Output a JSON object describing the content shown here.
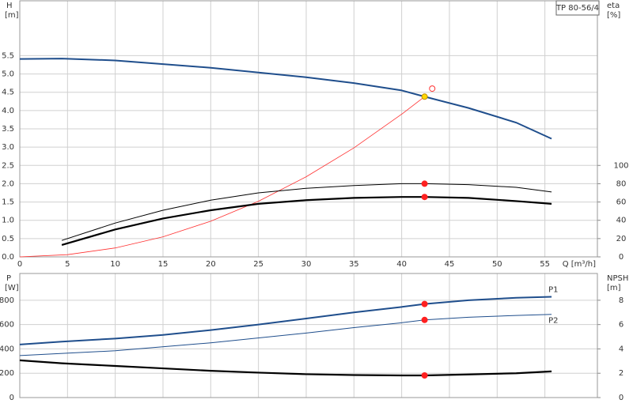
{
  "chart_data": [
    {
      "type": "line",
      "title": "TP 80-56/4",
      "ylabel": "H",
      "yunit": "[m]",
      "y2label": "eta",
      "y2unit": "[%]",
      "xlabel": "Q [m³/h]",
      "xlim": [
        0,
        60.5
      ],
      "xticks": [
        0,
        5,
        10,
        15,
        20,
        25,
        30,
        35,
        40,
        45,
        50,
        55
      ],
      "xtick_labels": true,
      "ylim": [
        0,
        7.0
      ],
      "yticks": [
        {
          "value": 0,
          "label": "0.0"
        },
        0.5,
        {
          "value": 1,
          "label": "1.0"
        },
        1.5,
        {
          "value": 2,
          "label": "2.0"
        },
        2.5,
        {
          "value": 3,
          "label": "3.0"
        },
        3.5,
        {
          "value": 4,
          "label": "4.0"
        },
        4.5,
        {
          "value": 5,
          "label": "5.0"
        },
        5.5
      ],
      "y2lim": [
        0,
        280
      ],
      "y2ticks": [
        0,
        20,
        40,
        60,
        80,
        100
      ],
      "grid": true,
      "series": [
        {
          "color": "#1f4e8c",
          "width": 2,
          "x": [
            0,
            4.4,
            10,
            20,
            30,
            35,
            40,
            42.4,
            47,
            52,
            55.7
          ],
          "values": [
            5.41,
            5.42,
            5.37,
            5.17,
            4.91,
            4.75,
            4.55,
            4.38,
            4.07,
            3.67,
            3.23
          ]
        },
        {
          "color": "#ff3030",
          "width": 0.8,
          "x": [
            0,
            5,
            10,
            15,
            20,
            25,
            30,
            35,
            40,
            42.4
          ],
          "values": [
            0,
            0.061,
            0.244,
            0.548,
            0.975,
            1.52,
            2.19,
            2.98,
            3.9,
            4.38
          ]
        },
        {
          "color": "#000000",
          "width": 1,
          "axis": "y2",
          "x": [
            4.4,
            10,
            15,
            20,
            25,
            30,
            35,
            40,
            42.4,
            47,
            52,
            55.7
          ],
          "values": [
            18,
            37,
            51,
            62,
            70,
            75,
            78,
            80,
            80,
            79,
            76,
            71
          ]
        },
        {
          "color": "#000000",
          "width": 2.2,
          "axis": "y2",
          "x": [
            4.4,
            10,
            15,
            20,
            25,
            30,
            35,
            40,
            42.4,
            47,
            52,
            55.7
          ],
          "values": [
            13,
            30,
            42,
            51,
            58,
            62,
            64.5,
            65.5,
            65.5,
            64.5,
            61,
            58
          ]
        }
      ],
      "points": [
        {
          "x": 42.4,
          "y": 4.38,
          "color": "#ffd700",
          "filled": true
        },
        {
          "x": 43.2,
          "y": 4.6,
          "color": "#ff3030",
          "filled": false
        },
        {
          "x": 42.4,
          "y": 80,
          "color": "#ff2020",
          "filled": true,
          "axis": "y2"
        },
        {
          "x": 42.4,
          "y": 65.5,
          "color": "#ff2020",
          "filled": true,
          "axis": "y2"
        }
      ]
    },
    {
      "type": "line",
      "ylabel": "P",
      "yunit": "[W]",
      "y2label": "NPSH",
      "y2unit": "[m]",
      "xlim": [
        0,
        60.5
      ],
      "xticks": [
        0,
        5,
        10,
        15,
        20,
        25,
        30,
        35,
        40,
        45,
        50,
        55
      ],
      "xtick_labels": false,
      "ylim": [
        0,
        1020
      ],
      "yticks": [
        0,
        200,
        400,
        600,
        800
      ],
      "y2lim": [
        0,
        10.2
      ],
      "y2ticks": [
        0,
        2,
        4,
        6,
        8
      ],
      "grid": true,
      "series": [
        {
          "name": "P1",
          "color": "#1f4e8c",
          "width": 2,
          "x": [
            0,
            4.4,
            10,
            15,
            20,
            25,
            30,
            35,
            40,
            42.4,
            47,
            52,
            55.7
          ],
          "values": [
            436,
            460,
            485,
            515,
            555,
            600,
            650,
            700,
            745,
            769,
            800,
            820,
            828
          ]
        },
        {
          "name": "P2",
          "color": "#1f4e8c",
          "width": 1,
          "x": [
            0,
            10,
            20,
            30,
            35,
            40,
            42.4,
            47,
            52,
            55.7
          ],
          "values": [
            345,
            385,
            450,
            530,
            575,
            615,
            638,
            660,
            675,
            684
          ]
        },
        {
          "color": "#000000",
          "width": 2.2,
          "axis": "y2",
          "x": [
            0,
            4.4,
            10,
            15,
            20,
            25,
            30,
            35,
            40,
            42.4,
            47,
            52,
            55.7
          ],
          "values": [
            3.06,
            2.82,
            2.6,
            2.4,
            2.2,
            2.05,
            1.92,
            1.85,
            1.82,
            1.82,
            1.9,
            2.0,
            2.15
          ]
        }
      ],
      "points": [
        {
          "x": 42.4,
          "y": 769,
          "color": "#ff2020",
          "filled": true
        },
        {
          "x": 42.4,
          "y": 638,
          "color": "#ff2020",
          "filled": true
        },
        {
          "x": 42.4,
          "y": 1.82,
          "color": "#ff2020",
          "filled": true,
          "axis": "y2"
        }
      ]
    }
  ]
}
